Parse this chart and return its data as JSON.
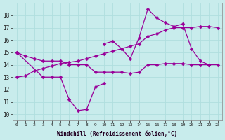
{
  "xlabel": "Windchill (Refroidissement éolien,°C)",
  "background_color": "#c8ecec",
  "grid_color": "#b0dede",
  "line_color": "#990099",
  "x": [
    0,
    1,
    2,
    3,
    4,
    5,
    6,
    7,
    8,
    9,
    10,
    11,
    12,
    13,
    14,
    15,
    16,
    17,
    18,
    19,
    20,
    21,
    22,
    23
  ],
  "lineA": [
    13.0,
    13.1,
    13.5,
    13.7,
    13.9,
    14.1,
    14.2,
    14.3,
    14.5,
    14.7,
    14.9,
    15.1,
    15.3,
    15.5,
    15.7,
    16.3,
    16.5,
    16.8,
    17.0,
    17.0,
    17.0,
    17.1,
    17.1,
    17.0
  ],
  "lineB": [
    15.0,
    14.7,
    14.5,
    14.3,
    14.3,
    14.3,
    14.0,
    14.0,
    14.0,
    13.4,
    13.4,
    13.4,
    13.4,
    13.3,
    13.4,
    14.0,
    14.0,
    14.1,
    14.1,
    14.1,
    14.0,
    14.0,
    14.0,
    14.0
  ],
  "lineC_part1": [
    15.0,
    null,
    null,
    13.0,
    13.0,
    13.0,
    11.2,
    10.3,
    10.4,
    12.2,
    12.5,
    null,
    null,
    null,
    null,
    null,
    null,
    null,
    null,
    null,
    null,
    null,
    null,
    null
  ],
  "lineC_part2": [
    null,
    null,
    null,
    null,
    null,
    null,
    null,
    null,
    null,
    null,
    15.7,
    15.9,
    15.3,
    14.5,
    16.2,
    18.5,
    17.8,
    17.4,
    17.1,
    17.3,
    15.3,
    14.3,
    14.0,
    null
  ],
  "ylim": [
    9.5,
    19.0
  ],
  "yticks": [
    10,
    11,
    12,
    13,
    14,
    15,
    16,
    17,
    18
  ],
  "xticks": [
    0,
    1,
    2,
    3,
    4,
    5,
    6,
    7,
    8,
    9,
    10,
    11,
    12,
    13,
    14,
    15,
    16,
    17,
    18,
    19,
    20,
    21,
    22,
    23
  ],
  "markersize": 2.5,
  "linewidth": 0.9
}
